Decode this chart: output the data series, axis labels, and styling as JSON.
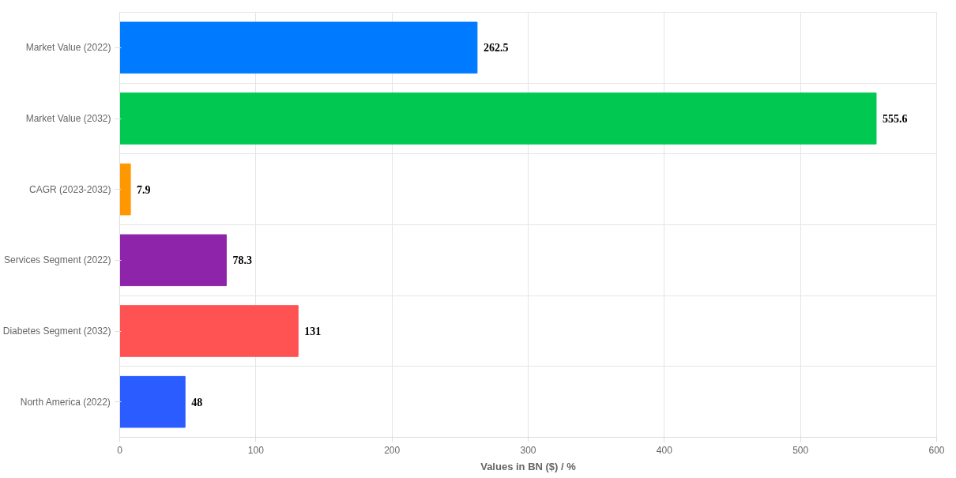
{
  "chart_data": {
    "type": "bar",
    "orientation": "horizontal",
    "xlabel": "Values in BN ($) / %",
    "categories": [
      "Market Value (2022)",
      "Market Value (2032)",
      "CAGR (2023-2032)",
      "Services Segment (2022)",
      "Diabetes Segment (2032)",
      "North America (2022)"
    ],
    "values": [
      262.5,
      555.6,
      7.9,
      78.3,
      131,
      48
    ],
    "colors": [
      "#007bff",
      "#00c851",
      "#ff9800",
      "#8e24aa",
      "#ff5252",
      "#2b5cff"
    ],
    "xlim": [
      0,
      600
    ],
    "xticks": [
      0,
      100,
      200,
      300,
      400,
      500,
      600
    ],
    "grid": true,
    "data_labels": true
  }
}
